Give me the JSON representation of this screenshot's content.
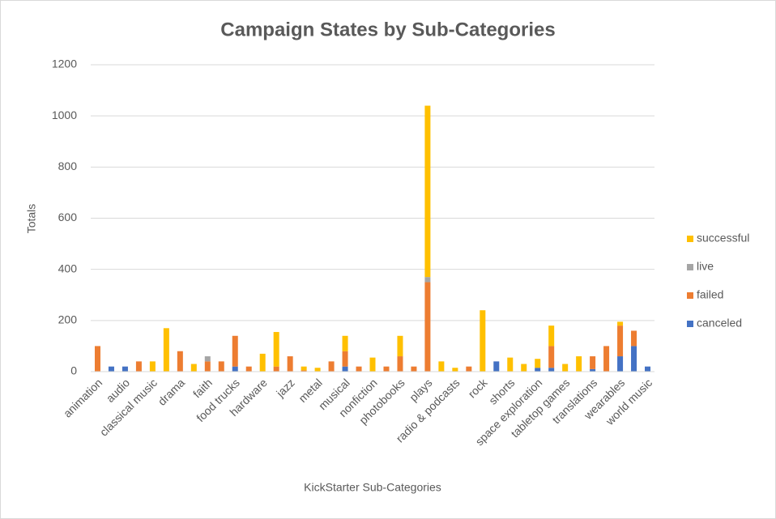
{
  "chart_data": {
    "type": "stacked_bar",
    "title": "Campaign States by Sub-Categories",
    "x_label": "KickStarter Sub-Categories",
    "y_label": "Totals",
    "categories": [
      "animation",
      null,
      "audio",
      null,
      "classical music",
      null,
      "drama",
      null,
      "faith",
      null,
      "food trucks",
      null,
      "hardware",
      null,
      "jazz",
      null,
      "metal",
      null,
      "musical",
      null,
      "nonfiction",
      null,
      "photobooks",
      null,
      "plays",
      null,
      "radio & podcasts",
      null,
      "rock",
      null,
      "shorts",
      null,
      "space exploration",
      null,
      "tabletop games",
      null,
      "translations",
      null,
      "wearables",
      null,
      "world music"
    ],
    "series": [
      {
        "name": "canceled",
        "color": "#4472c4",
        "values": [
          0,
          20,
          20,
          0,
          0,
          0,
          0,
          0,
          0,
          0,
          20,
          0,
          0,
          0,
          0,
          0,
          0,
          0,
          20,
          0,
          0,
          0,
          0,
          0,
          0,
          0,
          0,
          0,
          0,
          40,
          0,
          0,
          15,
          15,
          0,
          0,
          10,
          0,
          60,
          100,
          20
        ]
      },
      {
        "name": "failed",
        "color": "#ed7d31",
        "values": [
          100,
          0,
          0,
          40,
          0,
          0,
          80,
          0,
          40,
          40,
          120,
          20,
          0,
          20,
          60,
          5,
          0,
          40,
          60,
          20,
          0,
          20,
          60,
          20,
          350,
          0,
          0,
          20,
          0,
          0,
          0,
          0,
          0,
          85,
          0,
          0,
          50,
          100,
          120,
          60,
          0
        ]
      },
      {
        "name": "live",
        "color": "#a5a5a5",
        "values": [
          0,
          0,
          0,
          0,
          0,
          0,
          0,
          0,
          20,
          0,
          0,
          0,
          0,
          0,
          0,
          0,
          0,
          0,
          0,
          0,
          0,
          0,
          0,
          0,
          20,
          0,
          0,
          0,
          0,
          0,
          0,
          0,
          0,
          0,
          0,
          0,
          0,
          0,
          0,
          0,
          0
        ]
      },
      {
        "name": "successful",
        "color": "#ffc000",
        "values": [
          0,
          0,
          0,
          0,
          40,
          170,
          0,
          30,
          0,
          0,
          0,
          0,
          70,
          135,
          0,
          15,
          15,
          0,
          60,
          0,
          55,
          0,
          80,
          0,
          670,
          40,
          15,
          0,
          240,
          0,
          55,
          30,
          35,
          80,
          30,
          60,
          0,
          0,
          15,
          0,
          0
        ]
      }
    ],
    "ylim": [
      0,
      1200
    ],
    "yticks": [
      0,
      200,
      400,
      600,
      800,
      1000,
      1200
    ],
    "grid": true,
    "legend": "right"
  }
}
